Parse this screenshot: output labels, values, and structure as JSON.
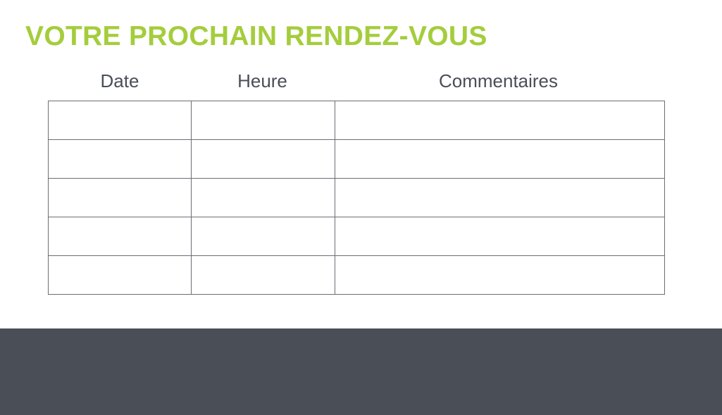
{
  "title": "VOTRE PROCHAIN RENDEZ-VOUS",
  "colors": {
    "accent": "#a4cd3c",
    "text": "#4a4e57",
    "footer": "#4a4e57",
    "grid": "#6b6d72"
  },
  "table": {
    "headers": [
      "Date",
      "Heure",
      "Commentaires"
    ],
    "rows": [
      [
        "",
        "",
        ""
      ],
      [
        "",
        "",
        ""
      ],
      [
        "",
        "",
        ""
      ],
      [
        "",
        "",
        ""
      ],
      [
        "",
        "",
        ""
      ]
    ]
  }
}
